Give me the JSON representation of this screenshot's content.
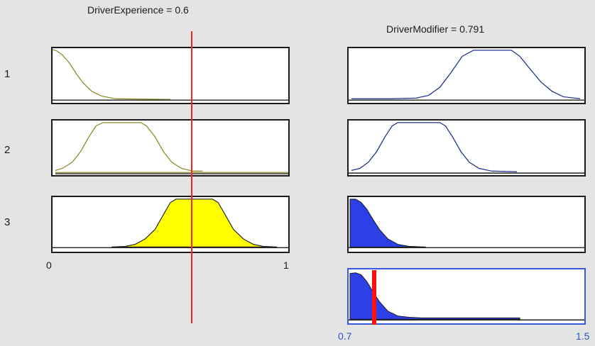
{
  "input": {
    "title": "DriverExperience = 0.6",
    "value": 0.6,
    "axis_ticks": [
      "0",
      "1"
    ],
    "range": [
      0,
      1
    ]
  },
  "output": {
    "title": "DriverModifier = 0.791",
    "value": 0.791,
    "axis_ticks": [
      "0.7",
      "1.5"
    ],
    "range": [
      0.7,
      1.5
    ]
  },
  "rules": [
    {
      "label": "1"
    },
    {
      "label": "2"
    },
    {
      "label": "3"
    }
  ],
  "colors": {
    "input_mf": "#8c8a2a",
    "fired_fill": "#ffff00",
    "output_mf": "#1f2f8f",
    "output_fill": "#2d3fe6",
    "indicator": "#ff2020",
    "aggregate_border": "#3a5adf"
  }
}
